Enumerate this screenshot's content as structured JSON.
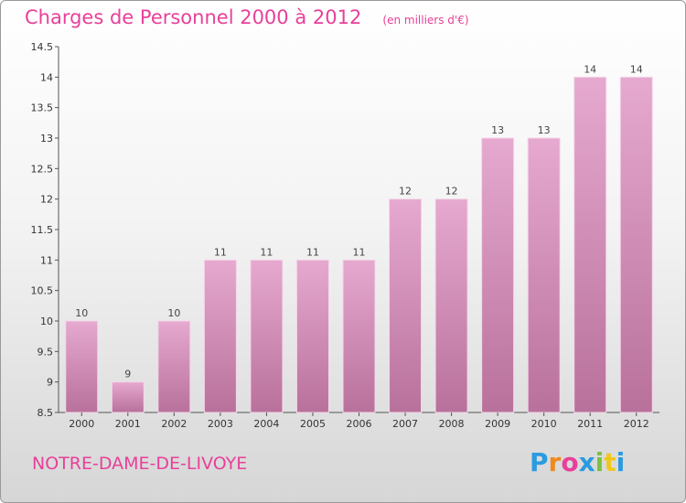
{
  "title": "Charges de Personnel 2000 à 2012",
  "unit_note": "(en milliers d'€)",
  "commune": "NOTRE-DAME-DE-LIVOYE",
  "logo": {
    "letters": [
      "P",
      "r",
      "o",
      "x",
      "i",
      "t",
      "i"
    ],
    "colors": [
      "#2a9be0",
      "#f08a1c",
      "#e8409a",
      "#2a9be0",
      "#7cc242",
      "#f0c81c",
      "#2a9be0"
    ]
  },
  "colors": {
    "accent": "#e8409a",
    "bar_top": "#e6a9cf",
    "bar_bottom": "#b8719b"
  },
  "chart_data": {
    "type": "bar",
    "title": "Charges de Personnel 2000 à 2012",
    "subtitle": "(en milliers d'€)",
    "categories": [
      "2000",
      "2001",
      "2002",
      "2003",
      "2004",
      "2005",
      "2006",
      "2007",
      "2008",
      "2009",
      "2010",
      "2011",
      "2012"
    ],
    "values": [
      10,
      9,
      10,
      11,
      11,
      11,
      11,
      12,
      12,
      13,
      13,
      14,
      14
    ],
    "ylim": [
      8.5,
      14.5
    ],
    "yticks": [
      "8.5",
      "9",
      "9.5",
      "10",
      "10.5",
      "11",
      "11.5",
      "12",
      "12.5",
      "13",
      "13.5",
      "14",
      "14.5"
    ],
    "grid": false,
    "legend": "none"
  }
}
